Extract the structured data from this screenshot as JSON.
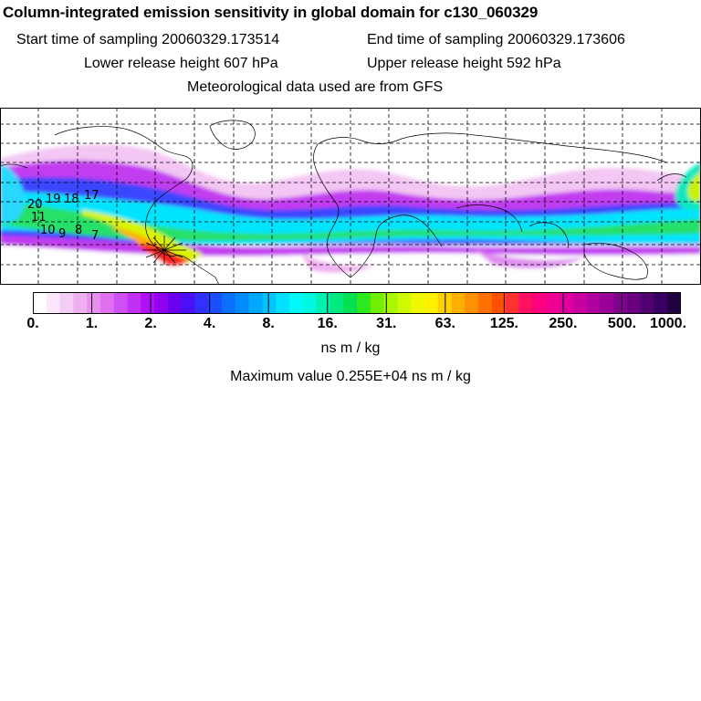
{
  "title": "Column-integrated emission sensitivity in global domain for c130_060329",
  "sampling": {
    "start": "Start time of sampling 20060329.173514",
    "end": "End time of sampling 20060329.173606"
  },
  "release": {
    "lower": "Lower release height  607 hPa",
    "upper": "Upper release height  592 hPa"
  },
  "met_note": "Meteorological data used are from GFS",
  "map": {
    "track_labels": [
      "20",
      "19",
      "18",
      "17",
      "11",
      "10",
      "9",
      "8",
      "7"
    ],
    "grid": "dashed",
    "band_colors": [
      "#ffffff",
      "#f5c8f5",
      "#c03cf0",
      "#3a3cff",
      "#00e8ff",
      "#20e060",
      "#c8f000",
      "#ffd000",
      "#ff2020",
      "#ff0090"
    ]
  },
  "colorbar": {
    "tick_labels": [
      "0.",
      "1.",
      "2.",
      "4.",
      "8.",
      "16.",
      "31.",
      "63.",
      "125.",
      "250.",
      "500.",
      "1000."
    ],
    "colors": [
      "#ffffff",
      "#fbe6fb",
      "#f5ccf5",
      "#efb0ef",
      "#e890f0",
      "#e070f0",
      "#d050f5",
      "#c030f5",
      "#b010f8",
      "#9000f0",
      "#6a00f0",
      "#4a10f8",
      "#3030ff",
      "#1c50ff",
      "#0c70ff",
      "#008cff",
      "#00a8ff",
      "#00c4ff",
      "#00e0ff",
      "#00f8f8",
      "#00f8e0",
      "#00f0b0",
      "#00e880",
      "#00e050",
      "#30e820",
      "#70f000",
      "#a8f800",
      "#d0f800",
      "#f0f800",
      "#fff000",
      "#ffd000",
      "#ffb000",
      "#ff9000",
      "#ff7000",
      "#ff5000",
      "#ff3030",
      "#ff1060",
      "#ff0080",
      "#f00090",
      "#e000a0",
      "#c800a0",
      "#b000a0",
      "#980098",
      "#800090",
      "#680080",
      "#500070",
      "#380060",
      "#200040"
    ],
    "units": "ns m / kg",
    "max_label": "Maximum value  0.255E+04 ns m / kg"
  }
}
